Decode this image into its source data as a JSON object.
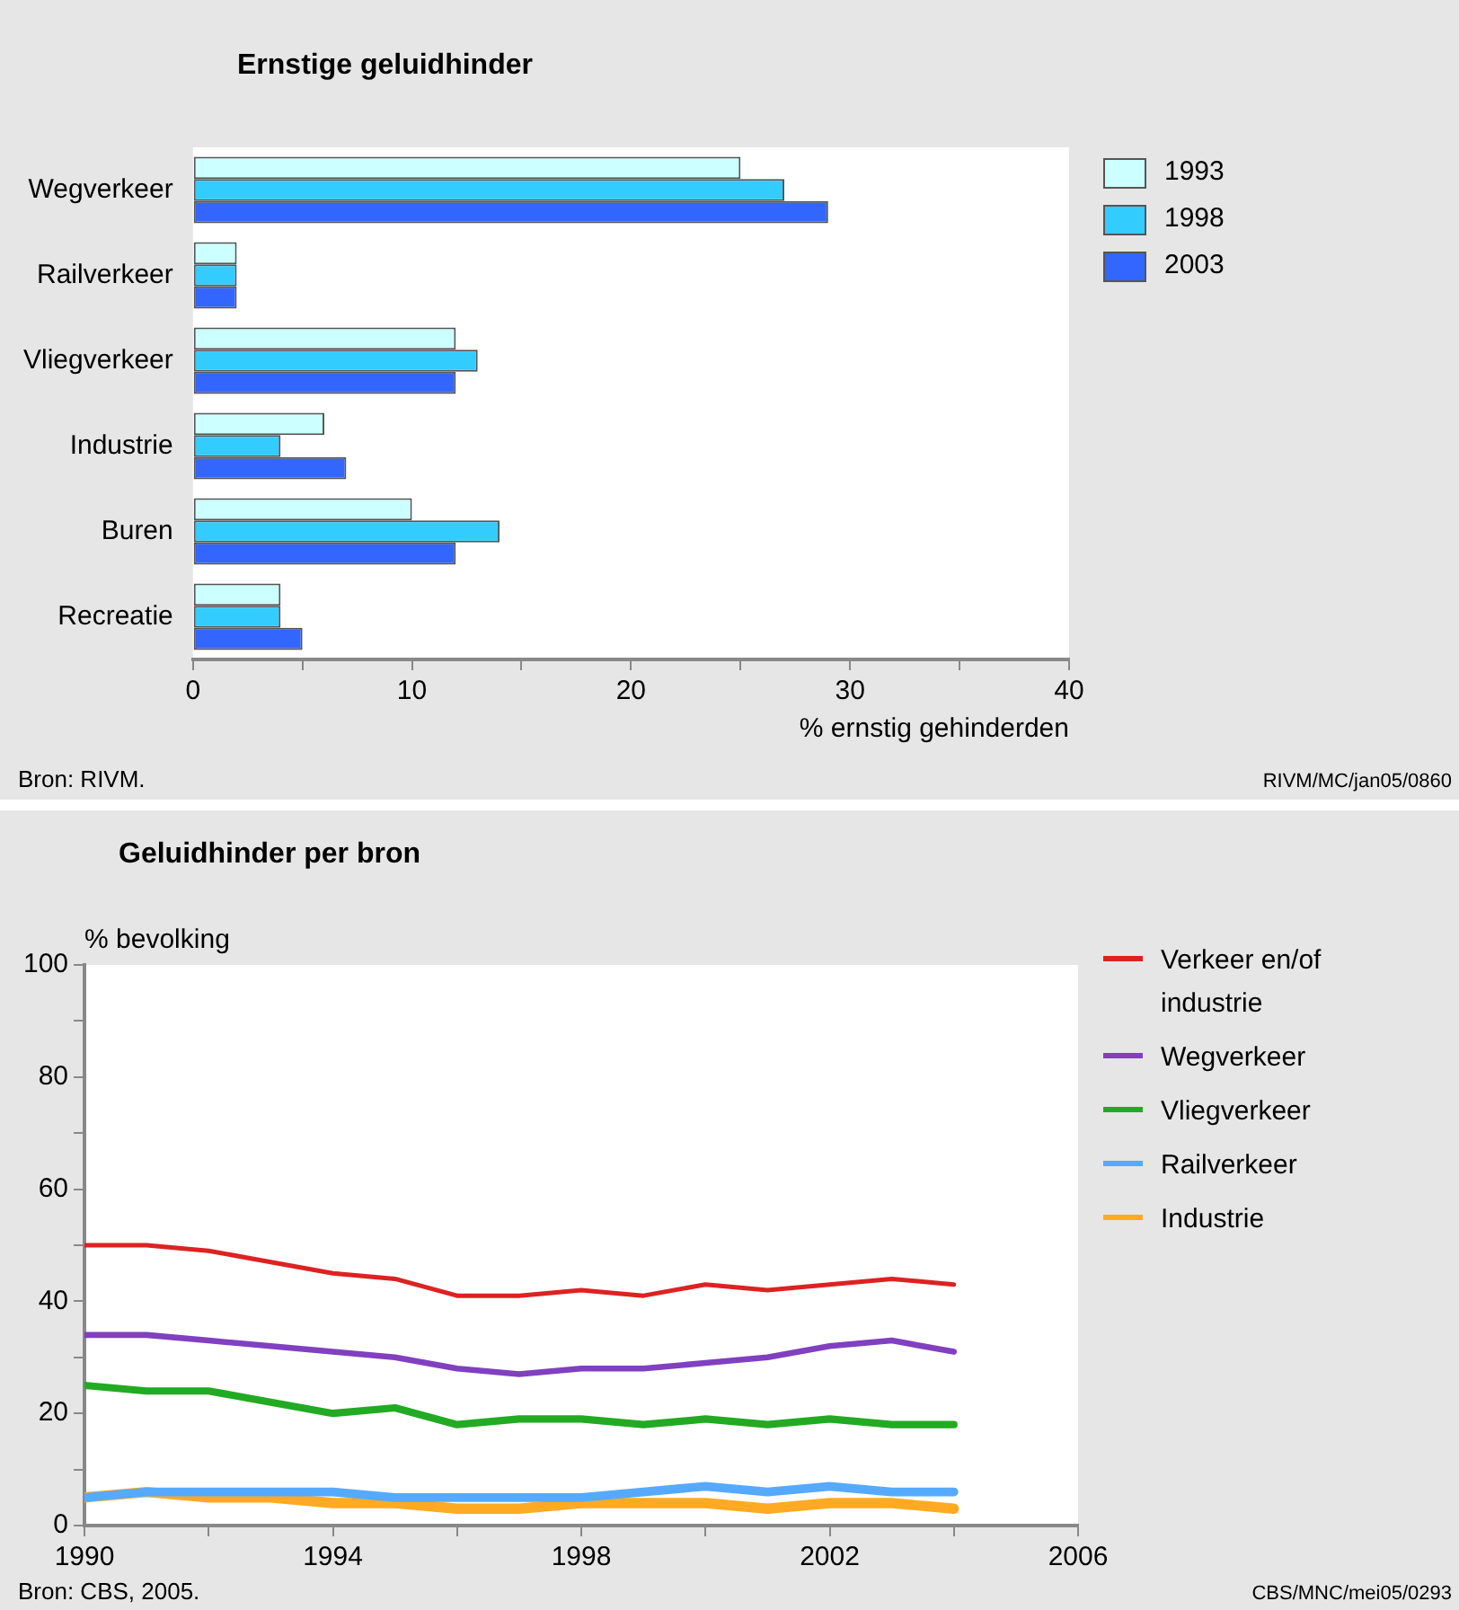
{
  "chart_data": [
    {
      "type": "bar",
      "orientation": "horizontal",
      "title": "Ernstige geluidhinder",
      "xlabel": "% ernstig gehinderden",
      "legend": "top right",
      "categories": [
        "Wegverkeer",
        "Railverkeer",
        "Vliegverkeer",
        "Industrie",
        "Buren",
        "Recreatie"
      ],
      "series": [
        {
          "name": "1993",
          "color": "#ccffff",
          "values": [
            25,
            2,
            12,
            6,
            10,
            4
          ]
        },
        {
          "name": "1998",
          "color": "#33ccff",
          "values": [
            27,
            2,
            13,
            4,
            14,
            4
          ]
        },
        {
          "name": "2003",
          "color": "#3366ff",
          "values": [
            29,
            2,
            12,
            7,
            12,
            5
          ]
        }
      ],
      "xlim": [
        0,
        40
      ],
      "xticks": [
        0,
        {
          "value": 5,
          "label": null
        },
        10,
        {
          "value": 15,
          "label": null
        },
        20,
        {
          "value": 25,
          "label": null
        },
        30,
        {
          "value": 35,
          "label": null
        },
        40
      ],
      "annotations": [
        "Bron: RIVM.",
        "RIVM/MC/jan05/0860"
      ]
    },
    {
      "type": "line",
      "title": "Geluidhinder per bron",
      "ylabel": "% bevolking",
      "legend": "top right",
      "x": [
        1990,
        1991,
        1992,
        1993,
        1994,
        1995,
        1996,
        1997,
        1998,
        1999,
        2000,
        2001,
        2002,
        2003,
        2004
      ],
      "series": [
        {
          "name": "Verkeer en/of industrie",
          "color": "#dd2222",
          "values": [
            50,
            50,
            49,
            47,
            45,
            44,
            41,
            41,
            42,
            41,
            43,
            42,
            43,
            44,
            43
          ]
        },
        {
          "name": "Wegverkeer",
          "color": "#8040c0",
          "values": [
            34,
            34,
            33,
            32,
            31,
            30,
            28,
            27,
            28,
            28,
            29,
            30,
            32,
            33,
            31
          ]
        },
        {
          "name": "Vliegverkeer",
          "color": "#22aa22",
          "values": [
            25,
            24,
            24,
            22,
            20,
            21,
            18,
            19,
            19,
            18,
            19,
            18,
            19,
            18,
            18
          ]
        },
        {
          "name": "Railverkeer",
          "color": "#55aaff",
          "values": [
            5,
            6,
            6,
            6,
            6,
            5,
            5,
            5,
            5,
            6,
            7,
            6,
            7,
            6,
            6
          ]
        },
        {
          "name": "Industrie",
          "color": "#ffaa22",
          "values": [
            5,
            6,
            5,
            5,
            4,
            4,
            3,
            3,
            4,
            4,
            4,
            3,
            4,
            4,
            3
          ]
        }
      ],
      "xlim": [
        1990,
        2006
      ],
      "xticks": [
        1990,
        {
          "value": 1992,
          "label": null
        },
        1994,
        {
          "value": 1996,
          "label": null
        },
        1998,
        {
          "value": 2000,
          "label": null
        },
        2002,
        {
          "value": 2004,
          "label": null
        },
        2006
      ],
      "ylim": [
        0,
        100
      ],
      "yticks": [
        0,
        {
          "value": 10,
          "label": null
        },
        20,
        {
          "value": 30,
          "label": null
        },
        40,
        {
          "value": 50,
          "label": null
        },
        60,
        {
          "value": 70,
          "label": null
        },
        80,
        {
          "value": 90,
          "label": null
        },
        100
      ],
      "marker": "none",
      "line_style": "solid",
      "annotations": [
        "Bron: CBS, 2005.",
        "CBS/MNC/mei05/0293"
      ]
    }
  ]
}
